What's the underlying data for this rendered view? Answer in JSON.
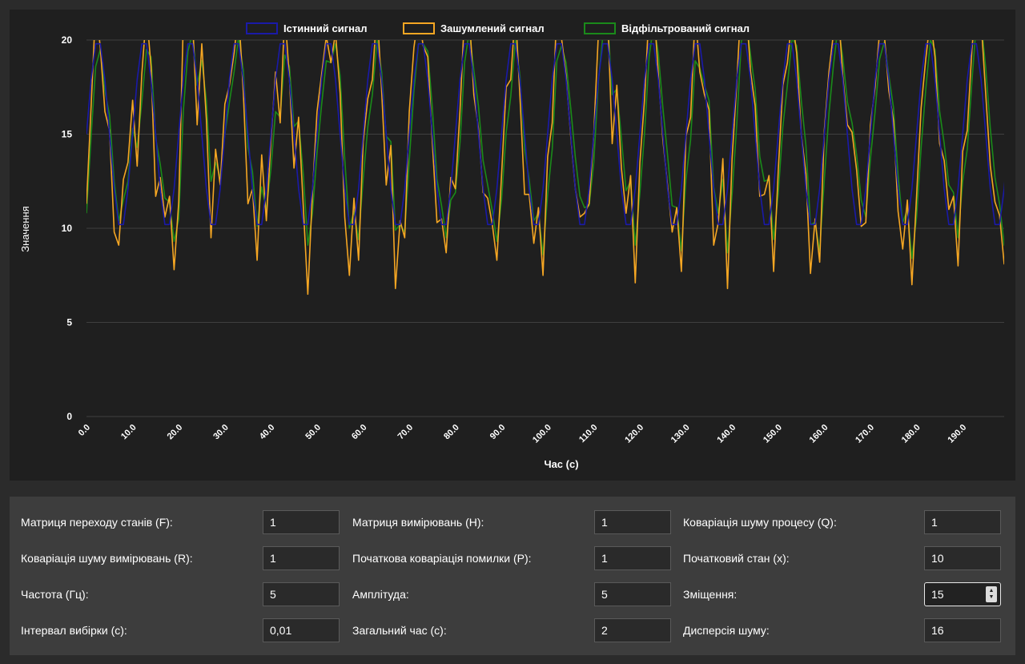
{
  "chart_data": {
    "type": "line",
    "xlabel": "Час (с)",
    "ylabel": "Значення",
    "xlim": [
      0,
      199
    ],
    "ylim": [
      0,
      20
    ],
    "yticks": [
      0,
      5,
      10,
      15,
      20
    ],
    "xticks": [
      "0.0",
      "10.0",
      "20.0",
      "30.0",
      "40.0",
      "50.0",
      "60.0",
      "70.0",
      "80.0",
      "90.0",
      "100.0",
      "110.0",
      "120.0",
      "130.0",
      "140.0",
      "150.0",
      "160.0",
      "170.0",
      "180.0",
      "190.0"
    ],
    "grid": true,
    "legend_position": "top-center",
    "series": [
      {
        "name": "Істинний сигнал",
        "color": "#1a1aa8",
        "values": [
          15,
          17.9,
          19.8,
          19.8,
          17.9,
          15,
          12.1,
          10.2,
          10.2,
          12.1,
          15,
          17.9,
          19.8,
          19.8,
          17.9,
          15,
          12.1,
          10.2,
          10.2,
          12.1,
          15,
          17.9,
          19.8,
          19.8,
          17.9,
          15,
          12.1,
          10.2,
          10.2,
          12.1,
          15,
          17.9,
          19.8,
          19.8,
          17.9,
          15,
          12.1,
          10.2,
          10.2,
          12.1,
          15,
          17.9,
          19.8,
          19.8,
          17.9,
          15,
          12.1,
          10.2,
          10.2,
          12.1,
          15,
          17.9,
          19.8,
          19.8,
          17.9,
          15,
          12.1,
          10.2,
          10.2,
          12.1,
          15,
          17.9,
          19.8,
          19.8,
          17.9,
          15,
          12.1,
          10.2,
          10.2,
          12.1,
          15,
          17.9,
          19.8,
          19.8,
          17.9,
          15,
          12.1,
          10.2,
          10.2,
          12.1,
          15,
          17.9,
          19.8,
          19.8,
          17.9,
          15,
          12.1,
          10.2,
          10.2,
          12.1,
          15,
          17.9,
          19.8,
          19.8,
          17.9,
          15,
          12.1,
          10.2,
          10.2,
          12.1,
          15,
          17.9,
          19.8,
          19.8,
          17.9,
          15,
          12.1,
          10.2,
          10.2,
          12.1,
          15,
          17.9,
          19.8,
          19.8,
          17.9,
          15,
          12.1,
          10.2,
          10.2,
          12.1,
          15,
          17.9,
          19.8,
          19.8,
          17.9,
          15,
          12.1,
          10.2,
          10.2,
          12.1,
          15,
          17.9,
          19.8,
          19.8,
          17.9,
          15,
          12.1,
          10.2,
          10.2,
          12.1,
          15,
          17.9,
          19.8,
          19.8,
          17.9,
          15,
          12.1,
          10.2,
          10.2,
          12.1,
          15,
          17.9,
          19.8,
          19.8,
          17.9,
          15,
          12.1,
          10.2,
          10.2,
          12.1,
          15,
          17.9,
          19.8,
          19.8,
          17.9,
          15,
          12.1,
          10.2,
          10.2,
          12.1,
          15,
          17.9,
          19.8,
          19.8,
          17.9,
          15,
          12.1,
          10.2,
          10.2,
          12.1,
          15,
          17.9,
          19.8,
          19.8,
          17.9,
          15,
          12.1,
          10.2,
          10.2,
          12.1,
          15,
          17.9,
          19.8,
          19.8,
          17.9,
          15,
          12.1,
          10.2,
          10.2,
          12.1,
          15,
          17.9,
          19.8,
          19.8,
          17.9,
          15,
          12.1,
          10.2,
          10.2,
          12.1
        ]
      },
      {
        "name": "Зашумлений сигнал",
        "color": "#f5a623",
        "values": [
          11.3,
          16.5,
          21.8,
          19.6,
          16.2,
          15.2,
          9.8,
          9.1,
          12.6,
          13.5,
          16.8,
          13.3,
          18.2,
          21.5,
          18.6,
          11.7,
          12.7,
          10.6,
          11.7,
          7.8,
          11.4,
          21,
          21.6,
          21.1,
          15.5,
          19.8,
          15.8,
          9.5,
          14.2,
          12.3,
          16.6,
          17.6,
          19.3,
          21.5,
          17.3,
          11.3,
          12.1,
          8.3,
          13.9,
          10.4,
          14.7,
          18.3,
          15.6,
          21.5,
          18,
          13.2,
          15.9,
          11.2,
          6.5,
          11.9,
          16.2,
          18.2,
          20.2,
          18.8,
          20.4,
          17.2,
          10.6,
          7.5,
          11.6,
          8.3,
          14.6,
          16.9,
          17.9,
          21.7,
          17.3,
          12.3,
          14.4,
          6.8,
          10.4,
          9.5,
          16.2,
          19.6,
          21.4,
          19.7,
          19.1,
          14.6,
          10.3,
          10.5,
          8.7,
          12.7,
          12.1,
          16.3,
          21.5,
          21.5,
          17.1,
          15.3,
          11.9,
          11.6,
          10.2,
          8.3,
          12.8,
          17.5,
          17.9,
          21.6,
          17,
          11.8,
          11.8,
          9.2,
          11.1,
          7.5,
          13.8,
          15.6,
          21.7,
          20.1,
          18.1,
          14.9,
          12.1,
          10.6,
          10.8,
          11.3,
          15,
          20.3,
          21.8,
          21.5,
          14.5,
          17.6,
          13.2,
          10.8,
          12.8,
          7.1,
          13.5,
          16.8,
          21.6,
          21.9,
          18.2,
          14.7,
          12.3,
          9.8,
          11.1,
          7.7,
          14.9,
          15.9,
          21.5,
          18.3,
          17.1,
          16.3,
          9.1,
          10.3,
          13.7,
          6.8,
          13.7,
          17.7,
          22.2,
          22,
          18.3,
          16.5,
          11.7,
          11.8,
          12.8,
          7.7,
          13,
          17.6,
          18.8,
          21.2,
          19.3,
          15,
          12.9,
          7.6,
          10.5,
          8.2,
          15.2,
          18.3,
          20.4,
          21.8,
          18.1,
          15.5,
          15.1,
          13.1,
          10.1,
          10.3,
          15.5,
          17.5,
          20.5,
          20.3,
          17.3,
          15.7,
          10.9,
          8.9,
          11.5,
          7,
          11.7,
          16.4,
          19,
          21.2,
          19.1,
          14.5,
          13.6,
          11,
          11.7,
          8,
          14.1,
          15.2,
          19.5,
          22.3,
          21,
          17.1,
          13.3,
          11.4,
          10.7,
          8.1,
          11.3,
          17.4,
          19.1,
          20.4,
          18.3,
          17.3,
          10.3,
          7.5,
          8.6,
          11.2
        ]
      },
      {
        "name": "Відфільтрований сигнал",
        "color": "#1a8a1a",
        "values": [
          10.8,
          14.9,
          18.6,
          19.5,
          17.3,
          16,
          12.5,
          10.4,
          11.5,
          12.5,
          15.3,
          14.3,
          16.7,
          19.5,
          19.1,
          14.8,
          13.4,
          11.6,
          11.4,
          9.3,
          10.5,
          16.2,
          19.4,
          20.4,
          17.6,
          18.9,
          16.8,
          12.5,
          13.5,
          12.7,
          15,
          16.7,
          18.3,
          20.2,
          18.4,
          14.3,
          13,
          10.1,
          12.2,
          11,
          13.2,
          16.2,
          15.9,
          19.2,
          18.6,
          15.4,
          15.7,
          12.9,
          9.1,
          10.8,
          14,
          16.6,
          18.9,
          18.8,
          19.8,
          18.1,
          13.7,
          10,
          10.9,
          9.4,
          12.6,
          15.4,
          17.1,
          20,
          18.3,
          14.9,
          14.6,
          9.9,
          10.2,
          9.8,
          13.6,
          17.3,
          19.8,
          19.8,
          19.4,
          16.4,
          12.6,
          11.2,
          9.5,
          11.5,
          11.9,
          14.6,
          18.8,
          20.5,
          18.4,
          16.5,
          13.6,
          12.3,
          10.9,
          9.3,
          11.5,
          15.1,
          17,
          20,
          18.1,
          14.2,
          12.6,
          10.4,
          10.8,
          8.6,
          11.8,
          14.2,
          18.9,
          19.7,
          18.8,
          16.4,
          13.8,
          11.7,
          11.1,
          11.2,
          13.5,
          17.8,
          20.3,
          21.1,
          17.1,
          17.4,
          14.8,
          12,
          12.5,
          9.1,
          11.9,
          15,
          19.1,
          20.9,
          19.3,
          16.4,
          13.9,
          11.2,
          11.1,
          8.8,
          12.6,
          14.7,
          18.9,
          18.5,
          17.6,
          16.8,
          12.2,
          10.8,
          12.6,
          8.7,
          11.8,
          15.5,
          19.9,
          21.3,
          19.2,
          17.4,
          13.8,
          12.5,
          12.6,
          9.4,
          11.8,
          15.4,
          17.6,
          20.1,
          19.7,
          16.8,
          14.4,
          10.2,
          10.3,
          8.8,
          12.6,
          16.1,
          18.7,
          20.8,
          19.1,
          16.7,
          15.6,
          13.9,
          11.5,
          10.6,
          13.7,
          16.2,
          19,
          19.9,
          18.1,
          16.4,
          12.8,
          10.3,
          11,
          8.4,
          10.6,
          14.3,
          17.4,
          20,
          19.5,
          16.2,
          14.5,
          12.3,
          11.9,
          9.5,
          12.5,
          14.2,
          17.8,
          21,
          21,
          18.5,
          15.3,
          12.7,
          11.3,
          9.1,
          10.6,
          14.9,
          18,
          20.1,
          18.9,
          17.7,
          12.9,
          9.3,
          8.7,
          10.5
        ]
      }
    ]
  },
  "controls": [
    {
      "label": "Матриця переходу станів (F):",
      "value": "1"
    },
    {
      "label": "Матриця вимірювань (H):",
      "value": "1"
    },
    {
      "label": "Коваріація шуму процесу (Q):",
      "value": "1"
    },
    {
      "label": "Коваріація шуму вимірювань (R):",
      "value": "1"
    },
    {
      "label": "Початкова коваріація помилки (P):",
      "value": "1"
    },
    {
      "label": "Початковий стан (x):",
      "value": "10"
    },
    {
      "label": "Частота (Гц):",
      "value": "5"
    },
    {
      "label": "Амплітуда:",
      "value": "5"
    },
    {
      "label": "Зміщення:",
      "value": "15"
    },
    {
      "label": "Інтервал вибірки (с):",
      "value": "0,01"
    },
    {
      "label": "Загальний час (с):",
      "value": "2"
    },
    {
      "label": "Дисперсія шуму:",
      "value": "16"
    }
  ]
}
